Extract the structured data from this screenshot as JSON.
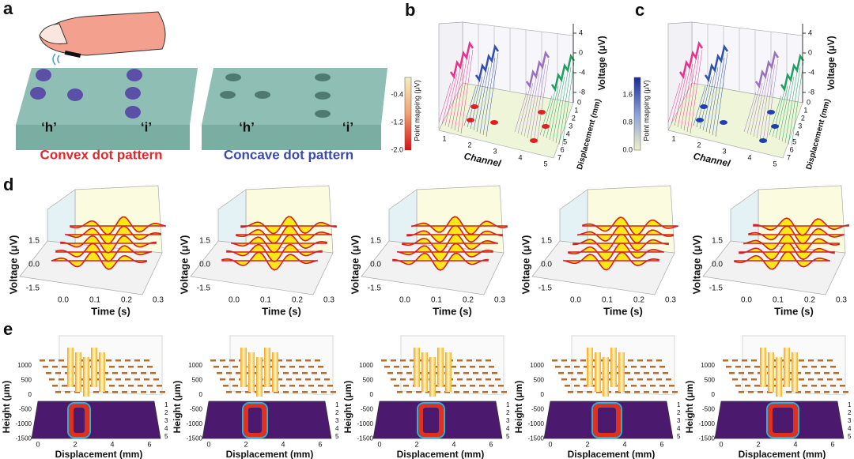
{
  "panels": {
    "a": {
      "label": "a",
      "left_h": "‘h’",
      "left_i": "‘i’",
      "right_h": "‘h’",
      "right_i": "‘i’",
      "convex": "Convex dot pattern",
      "concave": "Concave dot pattern"
    },
    "b": {
      "label": "b",
      "y_label": "Voltage (μV)",
      "y_ticks": [
        "4",
        "0",
        "-4",
        "-8"
      ],
      "colorbar_label": "Point mapping (μV)",
      "colorbar_ticks": [
        "-0.4",
        "-1.2",
        "-2.0"
      ],
      "x_label": "Channel",
      "x_ticks": [
        "1",
        "2",
        "3",
        "4",
        "5"
      ],
      "z_label": "Displacement (mm)",
      "z_ticks": [
        "0",
        "1",
        "2",
        "3",
        "4",
        "5",
        "6",
        "7"
      ]
    },
    "c": {
      "label": "c",
      "y_label": "Voltage (μV)",
      "y_ticks": [
        "4",
        "0",
        "-4",
        "-8"
      ],
      "colorbar_label": "Point mapping (μV)",
      "colorbar_ticks": [
        "1.6",
        "0.8",
        "0.0"
      ],
      "x_label": "Channel",
      "x_ticks": [
        "1",
        "2",
        "3",
        "4",
        "5"
      ],
      "z_label": "Displacement (mm)",
      "z_ticks": [
        "0",
        "1",
        "2",
        "3",
        "4",
        "5",
        "6",
        "7"
      ]
    },
    "d": {
      "label": "d",
      "plots": [
        {
          "y_label": "Voltage (μV)",
          "y_ticks": [
            "1.5",
            "0.0",
            "-1.5"
          ],
          "x_label": "Time (s)",
          "x_ticks": [
            "0.0",
            "0.1",
            "0.2",
            "0.3"
          ]
        },
        {
          "y_label": "Voltage (μV)",
          "y_ticks": [
            "1.5",
            "0.0",
            "-1.5"
          ],
          "x_label": "Time (s)",
          "x_ticks": [
            "0.0",
            "0.1",
            "0.2",
            "0.3"
          ]
        },
        {
          "y_label": "Voltage (μV)",
          "y_ticks": [
            "1.5",
            "0.0",
            "-1.5"
          ],
          "x_label": "Time (s)",
          "x_ticks": [
            "0.0",
            "0.1",
            "0.2",
            "0.3"
          ]
        },
        {
          "y_label": "Voltage (μV)",
          "y_ticks": [
            "1.5",
            "0.0",
            "-1.5"
          ],
          "x_label": "Time (s)",
          "x_ticks": [
            "0.0",
            "0.1",
            "0.2",
            "0.3"
          ]
        },
        {
          "y_label": "Voltage (μV)",
          "y_ticks": [
            "1.5",
            "0.0",
            "-1.5"
          ],
          "x_label": "Time (s)",
          "x_ticks": [
            "0.0",
            "0.1",
            "0.2",
            "0.3"
          ]
        }
      ]
    },
    "e": {
      "label": "e",
      "plots": [
        {
          "y_label": "Height (μm)",
          "y_ticks": [
            "1000",
            "500",
            "0",
            "-500",
            "-1000",
            "-1500"
          ],
          "x_label": "Displacement (mm)",
          "x_ticks": [
            "0",
            "2",
            "4",
            "6"
          ],
          "side_ticks": [
            "1",
            "2",
            "3",
            "4",
            "5"
          ]
        },
        {
          "y_label": "Height (μm)",
          "y_ticks": [
            "1000",
            "500",
            "0",
            "-500",
            "-1000",
            "-1500"
          ],
          "x_label": "Displacement (mm)",
          "x_ticks": [
            "0",
            "2",
            "4",
            "6"
          ],
          "side_ticks": [
            "1",
            "2",
            "3",
            "4",
            "5"
          ]
        },
        {
          "y_label": "Height (μm)",
          "y_ticks": [
            "1000",
            "500",
            "0",
            "-500",
            "-1000",
            "-1500"
          ],
          "x_label": "Displacement (mm)",
          "x_ticks": [
            "0",
            "2",
            "4",
            "6"
          ],
          "side_ticks": [
            "1",
            "2",
            "3",
            "4",
            "5"
          ]
        },
        {
          "y_label": "Height (μm)",
          "y_ticks": [
            "1000",
            "500",
            "0",
            "-500",
            "-1000",
            "-1500"
          ],
          "x_label": "Displacement (mm)",
          "x_ticks": [
            "0",
            "2",
            "4",
            "6"
          ],
          "side_ticks": [
            "1",
            "2",
            "3",
            "4",
            "5"
          ]
        },
        {
          "y_label": "Height (μm)",
          "y_ticks": [
            "1000",
            "500",
            "0",
            "-500",
            "-1000",
            "-1500"
          ],
          "x_label": "Displacement (mm)",
          "x_ticks": [
            "0",
            "2",
            "4",
            "6"
          ],
          "side_ticks": [
            "1",
            "2",
            "3",
            "4",
            "5"
          ]
        }
      ]
    }
  }
}
